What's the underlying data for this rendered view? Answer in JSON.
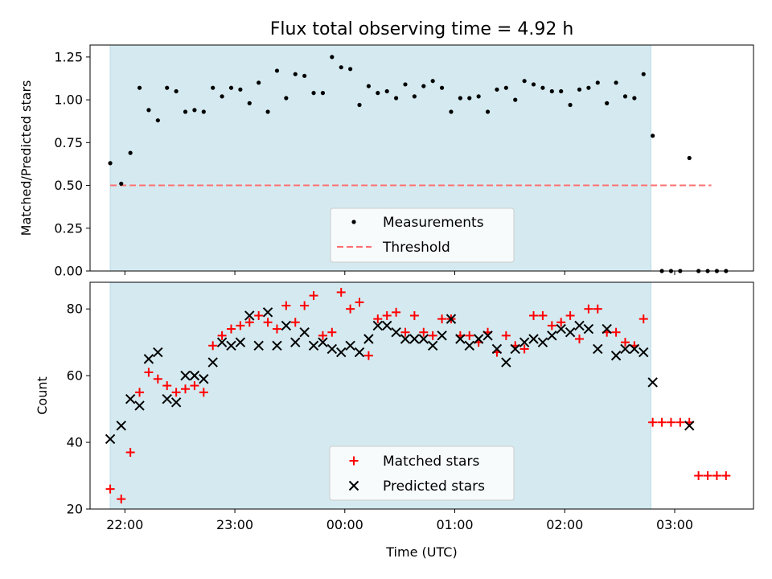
{
  "chart_data": [
    {
      "type": "scatter",
      "title": "Flux total observing time = 4.92 h",
      "xlabel": "",
      "ylabel": "Matched/Predicted stars",
      "ylim": [
        0,
        1.32
      ],
      "yticks": [
        "0.00",
        "0.25",
        "0.50",
        "0.75",
        "1.00",
        "1.25"
      ],
      "xlim": [
        "21:41",
        "03:43"
      ],
      "shaded_region": [
        "21:52",
        "02:47"
      ],
      "threshold": {
        "label": "Threshold",
        "value": 0.5,
        "x_start": "21:52",
        "x_end": "03:20"
      },
      "series": [
        {
          "name": "Measurements",
          "x": [
            "21:52",
            "21:58",
            "22:03",
            "22:08",
            "22:13",
            "22:18",
            "22:23",
            "22:28",
            "22:33",
            "22:38",
            "22:43",
            "22:48",
            "22:53",
            "22:58",
            "23:03",
            "23:08",
            "23:13",
            "23:18",
            "23:23",
            "23:28",
            "23:33",
            "23:38",
            "23:43",
            "23:48",
            "23:53",
            "23:58",
            "00:03",
            "00:08",
            "00:13",
            "00:18",
            "00:23",
            "00:28",
            "00:33",
            "00:38",
            "00:43",
            "00:48",
            "00:53",
            "00:58",
            "01:03",
            "01:08",
            "01:13",
            "01:18",
            "01:23",
            "01:28",
            "01:33",
            "01:38",
            "01:43",
            "01:48",
            "01:53",
            "01:58",
            "02:03",
            "02:08",
            "02:13",
            "02:18",
            "02:23",
            "02:28",
            "02:33",
            "02:38",
            "02:43",
            "02:48",
            "02:53",
            "02:58",
            "03:03",
            "03:08",
            "03:13",
            "03:18",
            "03:23",
            "03:28"
          ],
          "y": [
            0.63,
            0.51,
            0.69,
            1.07,
            0.94,
            0.88,
            1.07,
            1.05,
            0.93,
            0.94,
            0.93,
            1.07,
            1.02,
            1.07,
            1.06,
            0.98,
            1.1,
            0.93,
            1.17,
            1.01,
            1.15,
            1.14,
            1.04,
            1.04,
            1.25,
            1.19,
            1.18,
            0.97,
            1.08,
            1.04,
            1.05,
            1.01,
            1.09,
            1.02,
            1.08,
            1.11,
            1.07,
            0.93,
            1.01,
            1.01,
            1.02,
            0.93,
            1.06,
            1.07,
            1.0,
            1.11,
            1.09,
            1.07,
            1.05,
            1.05,
            0.97,
            1.06,
            1.07,
            1.1,
            0.98,
            1.1,
            1.02,
            1.01,
            1.15,
            0.79,
            0.0,
            0.0,
            0.0,
            0.66,
            0.0,
            0.0,
            0.0,
            0.0
          ]
        }
      ],
      "legend": {
        "placement": "lower-center",
        "entries": [
          "Measurements",
          "Threshold"
        ]
      },
      "colors": {
        "shade": "#d4eaf0",
        "points": "#000000",
        "threshold": "#ff7070"
      }
    },
    {
      "type": "scatter",
      "title": "",
      "xlabel": "Time (UTC)",
      "ylabel": "Count",
      "ylim": [
        20,
        88
      ],
      "yticks": [
        "20",
        "40",
        "60",
        "80"
      ],
      "xlim": [
        "21:41",
        "03:43"
      ],
      "xticks": [
        "22:00",
        "23:00",
        "00:00",
        "01:00",
        "02:00",
        "03:00"
      ],
      "shaded_region": [
        "21:52",
        "02:47"
      ],
      "series": [
        {
          "name": "Matched stars",
          "marker": "plus",
          "x": [
            "21:52",
            "21:58",
            "22:03",
            "22:08",
            "22:13",
            "22:18",
            "22:23",
            "22:28",
            "22:33",
            "22:38",
            "22:43",
            "22:48",
            "22:53",
            "22:58",
            "23:03",
            "23:08",
            "23:13",
            "23:18",
            "23:23",
            "23:28",
            "23:33",
            "23:38",
            "23:43",
            "23:48",
            "23:53",
            "23:58",
            "00:03",
            "00:08",
            "00:13",
            "00:18",
            "00:23",
            "00:28",
            "00:33",
            "00:38",
            "00:43",
            "00:48",
            "00:53",
            "00:58",
            "01:03",
            "01:08",
            "01:13",
            "01:18",
            "01:23",
            "01:28",
            "01:33",
            "01:38",
            "01:43",
            "01:48",
            "01:53",
            "01:58",
            "02:03",
            "02:08",
            "02:13",
            "02:18",
            "02:23",
            "02:28",
            "02:33",
            "02:38",
            "02:43",
            "02:48",
            "02:53",
            "02:58",
            "03:03",
            "03:08",
            "03:13",
            "03:18",
            "03:23",
            "03:28"
          ],
          "y": [
            26,
            23,
            37,
            55,
            61,
            59,
            57,
            55,
            56,
            57,
            55,
            69,
            72,
            74,
            75,
            76,
            78,
            76,
            74,
            81,
            76,
            81,
            84,
            72,
            73,
            85,
            80,
            82,
            66,
            77,
            78,
            79,
            73,
            78,
            73,
            72,
            77,
            77,
            72,
            72,
            70,
            73,
            67,
            72,
            69,
            68,
            78,
            78,
            75,
            76,
            78,
            71,
            80,
            80,
            73,
            73,
            70,
            69,
            77,
            46,
            46,
            46,
            46,
            46,
            30,
            30,
            30,
            30
          ]
        },
        {
          "name": "Predicted stars",
          "marker": "x",
          "x": [
            "21:52",
            "21:58",
            "22:03",
            "22:08",
            "22:13",
            "22:18",
            "22:23",
            "22:28",
            "22:33",
            "22:38",
            "22:43",
            "22:48",
            "22:53",
            "22:58",
            "23:03",
            "23:08",
            "23:13",
            "23:18",
            "23:23",
            "23:28",
            "23:33",
            "23:38",
            "23:43",
            "23:48",
            "23:53",
            "23:58",
            "00:03",
            "00:08",
            "00:13",
            "00:18",
            "00:23",
            "00:28",
            "00:33",
            "00:38",
            "00:43",
            "00:48",
            "00:53",
            "00:58",
            "01:03",
            "01:08",
            "01:13",
            "01:18",
            "01:23",
            "01:28",
            "01:33",
            "01:38",
            "01:43",
            "01:48",
            "01:53",
            "01:58",
            "02:03",
            "02:08",
            "02:13",
            "02:18",
            "02:23",
            "02:28",
            "02:33",
            "02:38",
            "02:43",
            "02:48",
            "03:08"
          ],
          "y": [
            41,
            45,
            53,
            51,
            65,
            67,
            53,
            52,
            60,
            60,
            59,
            64,
            70,
            69,
            70,
            78,
            69,
            79,
            69,
            75,
            70,
            73,
            69,
            70,
            68,
            67,
            69,
            67,
            71,
            75,
            75,
            73,
            71,
            71,
            71,
            69,
            72,
            77,
            71,
            69,
            71,
            72,
            68,
            64,
            68,
            70,
            71,
            70,
            72,
            74,
            73,
            75,
            74,
            68,
            74,
            66,
            68,
            68,
            67,
            58,
            45
          ]
        }
      ],
      "legend": {
        "placement": "lower-center",
        "entries": [
          "Matched stars",
          "Predicted stars"
        ]
      },
      "colors": {
        "shade": "#d4eaf0",
        "matched": "#ff0000",
        "predicted": "#000000"
      }
    }
  ]
}
